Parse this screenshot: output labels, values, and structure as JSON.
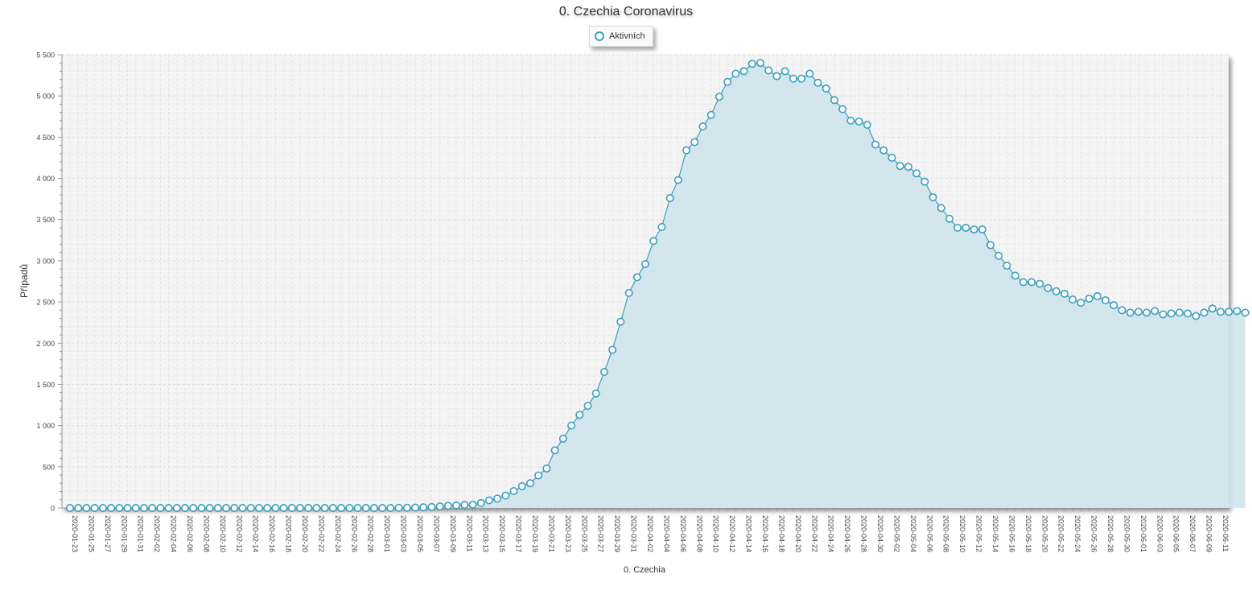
{
  "chart_data": {
    "type": "area",
    "title": "0. Czechia Coronavirus",
    "xlabel": "0. Czechia",
    "ylabel": "Případů",
    "ylim": [
      0,
      5500
    ],
    "yticks": [
      0,
      500,
      1000,
      1500,
      2000,
      2500,
      3000,
      3500,
      4000,
      4500,
      5000,
      5500
    ],
    "ytick_labels": [
      "0",
      "500",
      "1 000",
      "1 500",
      "2 000",
      "2 500",
      "3 000",
      "3 500",
      "4 000",
      "4 500",
      "5 000",
      "5 500"
    ],
    "xlim": [
      "2020-01-23",
      "2020-06-11"
    ],
    "x_tick_labels": [
      "2020-01-23",
      "2020-01-25",
      "2020-01-27",
      "2020-01-29",
      "2020-01-31",
      "2020-02-02",
      "2020-02-04",
      "2020-02-06",
      "2020-02-08",
      "2020-02-10",
      "2020-02-12",
      "2020-02-14",
      "2020-02-16",
      "2020-02-18",
      "2020-02-20",
      "2020-02-22",
      "2020-02-24",
      "2020-02-26",
      "2020-02-28",
      "2020-03-01",
      "2020-03-03",
      "2020-03-05",
      "2020-03-07",
      "2020-03-09",
      "2020-03-11",
      "2020-03-13",
      "2020-03-15",
      "2020-03-17",
      "2020-03-19",
      "2020-03-21",
      "2020-03-23",
      "2020-03-25",
      "2020-03-27",
      "2020-03-29",
      "2020-03-31",
      "2020-04-02",
      "2020-04-04",
      "2020-04-06",
      "2020-04-08",
      "2020-04-10",
      "2020-04-12",
      "2020-04-14",
      "2020-04-16",
      "2020-04-18",
      "2020-04-20",
      "2020-04-22",
      "2020-04-24",
      "2020-04-26",
      "2020-04-28",
      "2020-04-30",
      "2020-05-02",
      "2020-05-04",
      "2020-05-06",
      "2020-05-08",
      "2020-05-10",
      "2020-05-12",
      "2020-05-14",
      "2020-05-16",
      "2020-05-18",
      "2020-05-20",
      "2020-05-22",
      "2020-05-24",
      "2020-05-26",
      "2020-05-28",
      "2020-05-30",
      "2020-06-01",
      "2020-06-03",
      "2020-06-05",
      "2020-06-07",
      "2020-06-09",
      "2020-06-11"
    ],
    "grid": true,
    "legend_position": "top-center",
    "series": [
      {
        "name": "Aktivních",
        "color": "#3a9fbd",
        "fill": "#cfe4ec",
        "x_start": "2020-01-23",
        "values": [
          0,
          0,
          0,
          0,
          0,
          0,
          0,
          0,
          0,
          0,
          0,
          0,
          0,
          0,
          0,
          0,
          0,
          0,
          0,
          0,
          0,
          0,
          0,
          0,
          0,
          0,
          0,
          0,
          0,
          0,
          0,
          0,
          0,
          0,
          0,
          0,
          0,
          0,
          0,
          0,
          3,
          3,
          5,
          8,
          12,
          19,
          26,
          32,
          38,
          40,
          60,
          93,
          114,
          150,
          205,
          264,
          300,
          395,
          480,
          700,
          841,
          1000,
          1130,
          1240,
          1390,
          1651,
          1920,
          2260,
          2610,
          2800,
          2960,
          3240,
          3410,
          3760,
          3980,
          4340,
          4440,
          4630,
          4770,
          4990,
          5170,
          5270,
          5300,
          5390,
          5400,
          5310,
          5240,
          5300,
          5210,
          5210,
          5270,
          5160,
          5090,
          4950,
          4840,
          4700,
          4690,
          4650,
          4410,
          4340,
          4250,
          4150,
          4140,
          4060,
          3960,
          3770,
          3640,
          3510,
          3400,
          3400,
          3380,
          3380,
          3190,
          3060,
          2940,
          2820,
          2740,
          2740,
          2720,
          2670,
          2630,
          2600,
          2530,
          2490,
          2540,
          2570,
          2520,
          2460,
          2400,
          2370,
          2380,
          2370,
          2390,
          2350,
          2360,
          2370,
          2360,
          2330,
          2370,
          2420,
          2380,
          2380,
          2390,
          2370
        ]
      }
    ]
  }
}
